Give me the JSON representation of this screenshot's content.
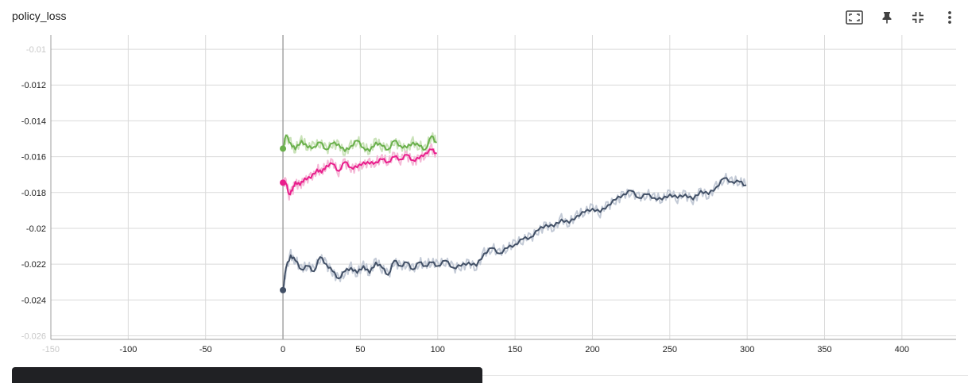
{
  "card": {
    "title": "policy_loss"
  },
  "toolbar": {
    "items": [
      {
        "name": "fit-domain-icon"
      },
      {
        "name": "pin-icon"
      },
      {
        "name": "collapse-icon"
      },
      {
        "name": "more-vert-icon"
      }
    ]
  },
  "chart_data": {
    "type": "line",
    "title": "policy_loss",
    "xlabel": "",
    "ylabel": "",
    "xlim": [
      -150,
      435
    ],
    "ylim": [
      -0.0262,
      -0.0092
    ],
    "x_ticks": [
      "-150",
      "-100",
      "-50",
      "0",
      "50",
      "100",
      "150",
      "200",
      "250",
      "300",
      "350",
      "400"
    ],
    "y_ticks": [
      "-0.01",
      "-0.012",
      "-0.014",
      "-0.016",
      "-0.018",
      "-0.02",
      "-0.022",
      "-0.024",
      "-0.026"
    ],
    "grid": true,
    "legend": "none",
    "series": [
      {
        "color": "#6ab04c",
        "shadow": "#c9e2b8",
        "points": [
          [
            0,
            -0.01555
          ],
          [
            2,
            -0.0148
          ],
          [
            5,
            -0.01525
          ],
          [
            8,
            -0.0156
          ],
          [
            12,
            -0.0151
          ],
          [
            16,
            -0.0155
          ],
          [
            20,
            -0.01545
          ],
          [
            24,
            -0.0152
          ],
          [
            28,
            -0.0156
          ],
          [
            32,
            -0.01525
          ],
          [
            36,
            -0.0153
          ],
          [
            40,
            -0.0157
          ],
          [
            44,
            -0.0154
          ],
          [
            48,
            -0.0151
          ],
          [
            52,
            -0.0155
          ],
          [
            56,
            -0.0157
          ],
          [
            60,
            -0.0152
          ],
          [
            64,
            -0.0154
          ],
          [
            68,
            -0.0156
          ],
          [
            72,
            -0.0151
          ],
          [
            76,
            -0.0154
          ],
          [
            80,
            -0.0155
          ],
          [
            84,
            -0.0152
          ],
          [
            88,
            -0.0154
          ],
          [
            92,
            -0.0156
          ],
          [
            96,
            -0.01485
          ],
          [
            99,
            -0.0152
          ]
        ]
      },
      {
        "color": "#e91e8c",
        "shadow": "#f4b8d6",
        "points": [
          [
            0,
            -0.01745
          ],
          [
            2,
            -0.0175
          ],
          [
            4,
            -0.0181
          ],
          [
            6,
            -0.0179
          ],
          [
            8,
            -0.0174
          ],
          [
            11,
            -0.0176
          ],
          [
            14,
            -0.0172
          ],
          [
            18,
            -0.0172
          ],
          [
            22,
            -0.0167
          ],
          [
            25,
            -0.0169
          ],
          [
            28,
            -0.0165
          ],
          [
            32,
            -0.0164
          ],
          [
            36,
            -0.0168
          ],
          [
            40,
            -0.0163
          ],
          [
            44,
            -0.0166
          ],
          [
            48,
            -0.0166
          ],
          [
            52,
            -0.0163
          ],
          [
            56,
            -0.0164
          ],
          [
            60,
            -0.0163
          ],
          [
            64,
            -0.01615
          ],
          [
            68,
            -0.0163
          ],
          [
            72,
            -0.016
          ],
          [
            76,
            -0.01615
          ],
          [
            80,
            -0.0159
          ],
          [
            84,
            -0.0162
          ],
          [
            88,
            -0.0161
          ],
          [
            92,
            -0.0158
          ],
          [
            96,
            -0.0156
          ],
          [
            99,
            -0.0158
          ]
        ]
      },
      {
        "color": "#425066",
        "shadow": "#c3cad6",
        "points": [
          [
            0,
            -0.02345
          ],
          [
            2,
            -0.0222
          ],
          [
            5,
            -0.0215
          ],
          [
            8,
            -0.0218
          ],
          [
            12,
            -0.0223
          ],
          [
            16,
            -0.0221
          ],
          [
            20,
            -0.0224
          ],
          [
            24,
            -0.0216
          ],
          [
            28,
            -0.022
          ],
          [
            32,
            -0.0224
          ],
          [
            36,
            -0.0228
          ],
          [
            40,
            -0.0224
          ],
          [
            44,
            -0.0222
          ],
          [
            48,
            -0.0225
          ],
          [
            52,
            -0.0221
          ],
          [
            56,
            -0.0225
          ],
          [
            60,
            -0.0219
          ],
          [
            64,
            -0.0222
          ],
          [
            68,
            -0.0226
          ],
          [
            72,
            -0.0218
          ],
          [
            76,
            -0.0221
          ],
          [
            80,
            -0.0219
          ],
          [
            84,
            -0.0223
          ],
          [
            88,
            -0.0219
          ],
          [
            92,
            -0.0221
          ],
          [
            96,
            -0.0219
          ],
          [
            100,
            -0.0221
          ],
          [
            105,
            -0.0218
          ],
          [
            110,
            -0.0222
          ],
          [
            115,
            -0.0221
          ],
          [
            120,
            -0.0219
          ],
          [
            125,
            -0.0221
          ],
          [
            130,
            -0.0214
          ],
          [
            135,
            -0.0211
          ],
          [
            140,
            -0.0214
          ],
          [
            145,
            -0.0211
          ],
          [
            150,
            -0.0209
          ],
          [
            155,
            -0.0206
          ],
          [
            160,
            -0.0205
          ],
          [
            165,
            -0.0201
          ],
          [
            170,
            -0.0198
          ],
          [
            175,
            -0.0199
          ],
          [
            180,
            -0.0195
          ],
          [
            185,
            -0.0197
          ],
          [
            190,
            -0.0193
          ],
          [
            195,
            -0.0191
          ],
          [
            200,
            -0.0189
          ],
          [
            205,
            -0.0191
          ],
          [
            210,
            -0.0187
          ],
          [
            215,
            -0.0184
          ],
          [
            220,
            -0.0181
          ],
          [
            225,
            -0.0179
          ],
          [
            230,
            -0.0183
          ],
          [
            235,
            -0.0181
          ],
          [
            240,
            -0.0183
          ],
          [
            245,
            -0.0184
          ],
          [
            250,
            -0.0181
          ],
          [
            255,
            -0.0183
          ],
          [
            260,
            -0.0181
          ],
          [
            265,
            -0.0184
          ],
          [
            270,
            -0.0179
          ],
          [
            275,
            -0.0181
          ],
          [
            280,
            -0.0177
          ],
          [
            285,
            -0.0172
          ],
          [
            290,
            -0.0174
          ],
          [
            295,
            -0.0174
          ],
          [
            299,
            -0.0176
          ]
        ]
      }
    ]
  }
}
